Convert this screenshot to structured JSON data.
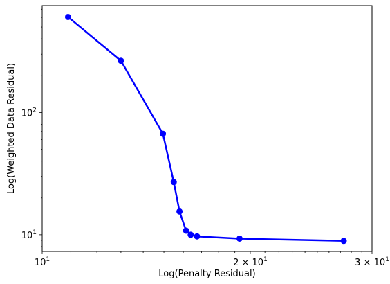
{
  "chart_data": {
    "type": "line",
    "xlabel": "Log(Penalty Residual)",
    "ylabel": "Log(Weighted Data Residual)",
    "xscale": "log",
    "yscale": "log",
    "xlim": [
      10,
      30
    ],
    "ylim": [
      7.3,
      750
    ],
    "grid": false,
    "x_major_ticks": [
      {
        "value": 10,
        "base": "10",
        "exp": "1",
        "coef": ""
      },
      {
        "value": 20,
        "base": "10",
        "exp": "1",
        "coef": "2 × "
      },
      {
        "value": 30,
        "base": "10",
        "exp": "1",
        "coef": "3 × "
      }
    ],
    "y_major_ticks": [
      {
        "value": 10,
        "base": "10",
        "exp": "1"
      },
      {
        "value": 100,
        "base": "10",
        "exp": "2"
      }
    ],
    "series": [
      {
        "color": "#0000ff",
        "marker": "circle",
        "x": [
          10.9,
          13.0,
          14.95,
          15.5,
          15.8,
          16.15,
          16.4,
          16.75,
          19.3,
          27.3
        ],
        "y": [
          605,
          265,
          67,
          27,
          15.5,
          10.8,
          10.0,
          9.7,
          9.3,
          8.9
        ]
      }
    ]
  }
}
